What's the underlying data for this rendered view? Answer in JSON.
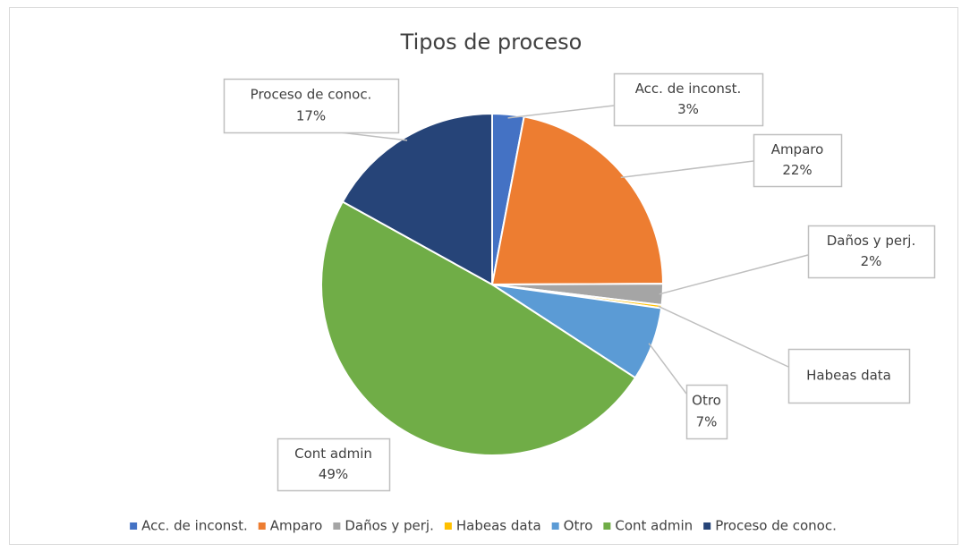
{
  "chart_data": {
    "type": "pie",
    "title": "Tipos de proceso",
    "categories": [
      "Acc. de inconst.",
      "Amparo",
      "Daños y perj.",
      "Habeas data",
      "Otro",
      "Cont admin",
      "Proceso de conoc."
    ],
    "values": [
      3,
      22,
      2,
      0.3,
      7,
      49,
      17
    ],
    "value_labels": [
      "3%",
      "22%",
      "2%",
      null,
      "7%",
      "49%",
      "17%"
    ],
    "colors": [
      "#4472c4",
      "#ed7d31",
      "#a5a5a5",
      "#ffc000",
      "#5b9bd5",
      "#70ad47",
      "#264478"
    ],
    "legend": "bottom"
  }
}
